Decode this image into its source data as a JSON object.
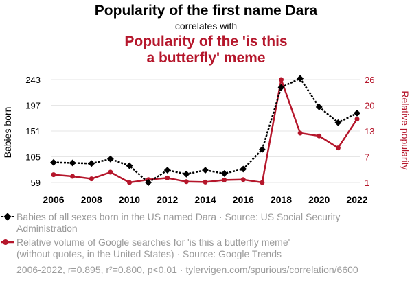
{
  "header": {
    "title": "Popularity of the first name Dara",
    "subtitle": "correlates with",
    "title2_line1": "Popularity of the 'is this",
    "title2_line2": "a butterfly' meme"
  },
  "colors": {
    "series1": "#000000",
    "series2": "#b5162b",
    "muted": "#9a9a9a",
    "grid": "#e6e6e6"
  },
  "chart_data": {
    "type": "line",
    "x": [
      2006,
      2007,
      2008,
      2009,
      2010,
      2011,
      2012,
      2013,
      2014,
      2015,
      2016,
      2017,
      2018,
      2019,
      2020,
      2021,
      2022
    ],
    "xticks": [
      "2006",
      "2008",
      "2010",
      "2012",
      "2014",
      "2016",
      "2018",
      "2020",
      "2022"
    ],
    "ylabel_left": "Babies born",
    "ylabel_right": "Relative popularity",
    "yticks_left": [
      "243",
      "197",
      "151",
      "105",
      "59"
    ],
    "yticks_right": [
      "26",
      "20",
      "13",
      "7",
      "1"
    ],
    "ylim_left": [
      59,
      243
    ],
    "ylim_right": [
      1,
      26
    ],
    "series": [
      {
        "name": "Babies of all sexes born in the US named Dara",
        "axis": "left",
        "values": [
          95,
          94,
          93,
          101,
          89,
          59,
          81,
          74,
          81,
          75,
          83,
          118,
          229,
          245,
          194,
          166,
          183
        ]
      },
      {
        "name": "Relative volume of Google searches for 'is this a butterfly meme'",
        "axis": "right",
        "values": [
          2.9,
          2.5,
          1.9,
          3.5,
          1.0,
          1.7,
          2.1,
          1.2,
          1.1,
          1.6,
          1.7,
          1.0,
          26.0,
          13.0,
          12.3,
          9.4,
          16.4
        ]
      }
    ],
    "legend": {
      "s1_line1": "Babies of all sexes born in the US named Dara · Source: US Social Security",
      "s1_line2": "Administration",
      "s2_line1": "Relative volume of Google searches for 'is this a butterfly meme'",
      "s2_line2": "(without quotes, in the United States) · Source: Google Trends"
    }
  },
  "footer": {
    "stats": "2006-2022, r=0.895, r²=0.800, p<0.01 · tylervigen.com/spurious/correlation/6600"
  }
}
